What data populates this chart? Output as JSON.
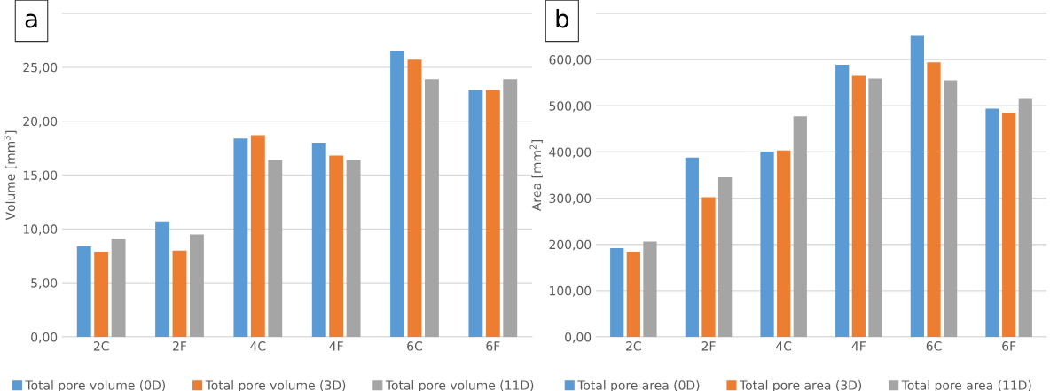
{
  "chart_data": [
    {
      "type": "bar",
      "ylabel": "Volume [mm$^{3}$]",
      "annotations": [
        "a"
      ],
      "categories": [
        "2C",
        "2F",
        "4C",
        "4F",
        "6C",
        "6F"
      ],
      "series": [
        {
          "name": "Total pore volume (0D)",
          "color": "#5b9bd5",
          "values": [
            8.4,
            10.7,
            18.4,
            18.0,
            26.5,
            22.9
          ]
        },
        {
          "name": "Total pore volume (3D)",
          "color": "#ed7d31",
          "values": [
            7.9,
            8.0,
            18.7,
            16.8,
            25.7,
            22.9
          ]
        },
        {
          "name": "Total pore volume (11D)",
          "color": "#a5a5a5",
          "values": [
            9.1,
            9.5,
            16.4,
            16.4,
            23.9,
            23.9
          ]
        }
      ],
      "ylim": [
        0,
        30
      ],
      "yticks": [
        {
          "value": 0,
          "label": "0,00"
        },
        {
          "value": 5,
          "label": "5,00"
        },
        {
          "value": 10,
          "label": "10,00"
        },
        {
          "value": 15,
          "label": "15,00"
        },
        {
          "value": 20,
          "label": "20,00"
        },
        {
          "value": 25,
          "label": "25,00"
        },
        {
          "value": 30,
          "label": null
        }
      ],
      "grid": "y",
      "legend": "bottom"
    },
    {
      "type": "bar",
      "ylabel": "Area [mm$^{2}$]",
      "annotations": [
        "b"
      ],
      "categories": [
        "2C",
        "2F",
        "4C",
        "4F",
        "6C",
        "6F"
      ],
      "series": [
        {
          "name": "Total pore area (0D)",
          "color": "#5b9bd5",
          "values": [
            192,
            388,
            401,
            589,
            651,
            494
          ]
        },
        {
          "name": "Total pore area (3D)",
          "color": "#ed7d31",
          "values": [
            184,
            302,
            403,
            565,
            594,
            485
          ]
        },
        {
          "name": "Total pore area (11D)",
          "color": "#a5a5a5",
          "values": [
            206,
            345,
            477,
            559,
            555,
            515
          ]
        }
      ],
      "ylim": [
        0,
        700
      ],
      "yticks": [
        {
          "value": 0,
          "label": "0,00"
        },
        {
          "value": 100,
          "label": "100,00"
        },
        {
          "value": 200,
          "label": "200,00"
        },
        {
          "value": 300,
          "label": "300,00"
        },
        {
          "value": 400,
          "label": "400,00"
        },
        {
          "value": 500,
          "label": "500,00"
        },
        {
          "value": 600,
          "label": "600,00"
        },
        {
          "value": 700,
          "label": null
        }
      ],
      "grid": "y",
      "legend": "bottom"
    }
  ]
}
